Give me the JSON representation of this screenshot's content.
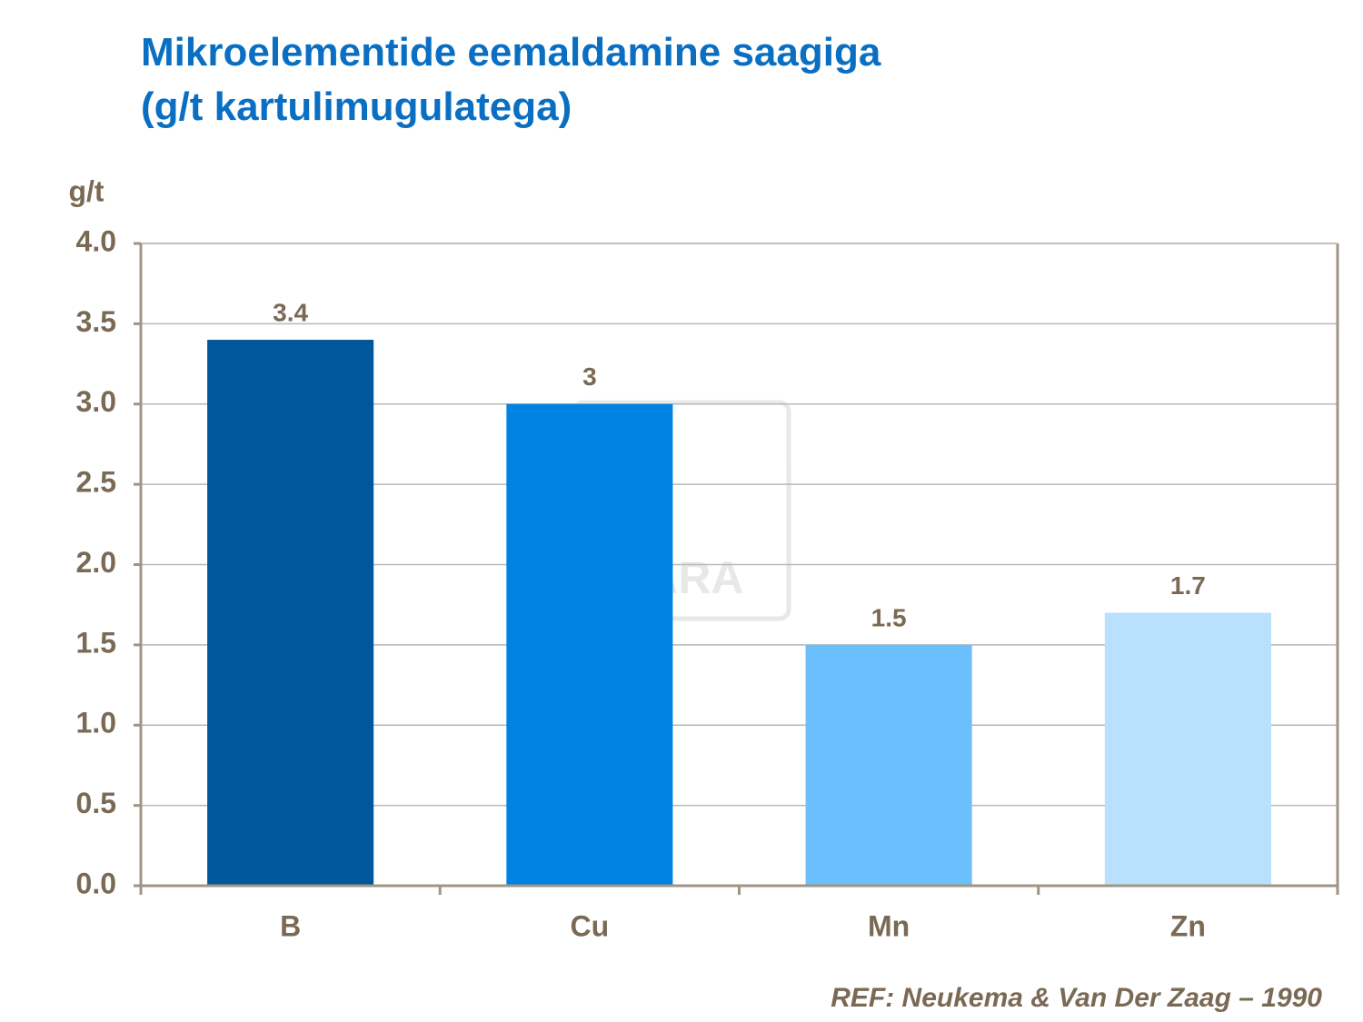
{
  "chart_data": {
    "type": "bar",
    "title": "Mikroelementide eemaldamine saagiga",
    "subtitle": "(g/t kartulimugulatega)",
    "y_label": "g/t",
    "categories": [
      "B",
      "Cu",
      "Mn",
      "Zn"
    ],
    "values": [
      3.4,
      3,
      1.5,
      1.7
    ],
    "colors": [
      "#00579b",
      "#0083e2",
      "#6bbffd",
      "#b9e0fd"
    ],
    "ylim": [
      0,
      4
    ],
    "yticks": [
      {
        "value": 0,
        "label": "0.0"
      },
      0.5,
      {
        "value": 1,
        "label": "1.0"
      },
      1.5,
      {
        "value": 2,
        "label": "2.0"
      },
      2.5,
      {
        "value": 3,
        "label": "3.0"
      },
      3.5,
      {
        "value": 4,
        "label": "4.0"
      }
    ],
    "grid": true,
    "watermark": "YARA",
    "source": "REF: Neukema  & Van Der Zaag – 1990"
  }
}
